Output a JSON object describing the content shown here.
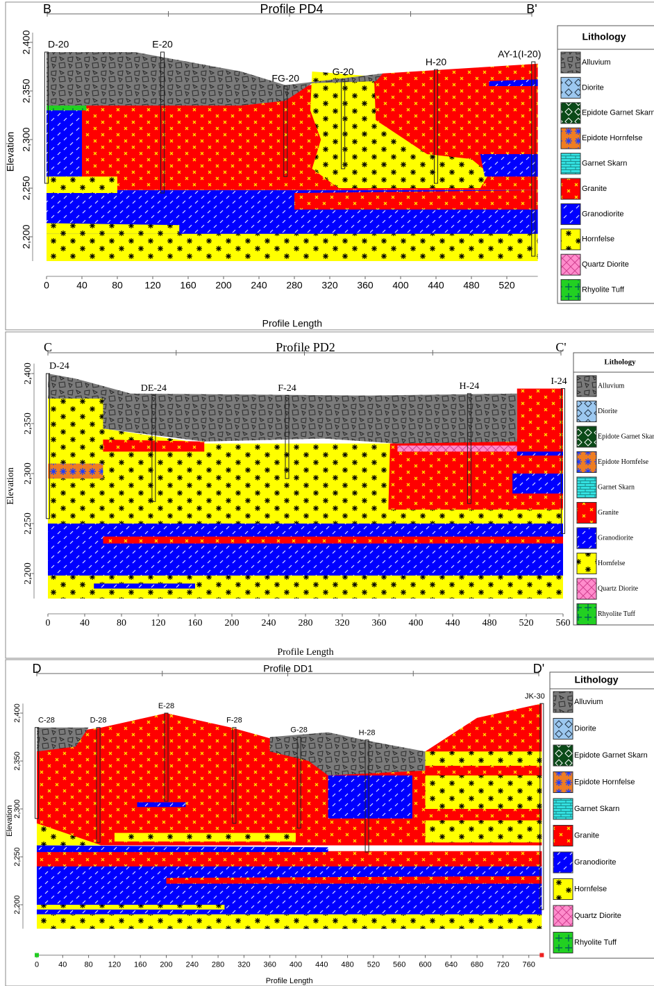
{
  "panels": [
    {
      "left_mark": "B",
      "right_mark": "B'",
      "title": "Profile PD4",
      "y_label": "Elevation",
      "x_label": "Profile Length",
      "yticks": [
        "2,400",
        "2,350",
        "2,300",
        "2,250",
        "2,200"
      ],
      "xticks": [
        "0",
        "40",
        "80",
        "120",
        "160",
        "200",
        "240",
        "280",
        "320",
        "360",
        "400",
        "440",
        "480",
        "520"
      ],
      "wells": [
        "D-20",
        "E-20",
        "FG-20",
        "G-20",
        "H-20",
        "AY-1(I-20)"
      ],
      "legend": {
        "title": "Lithology",
        "items": [
          "Alluvium",
          "Diorite",
          "Epidote Garnet Skarn",
          "Epidote Hornfelse",
          "Garnet Skarn",
          "Granite",
          "Granodiorite",
          "Hornfelse",
          "Quartz Diorite",
          "Rhyolite Tuff"
        ]
      }
    },
    {
      "left_mark": "C",
      "right_mark": "C'",
      "title": "Profile PD2",
      "y_label": "Elevation",
      "x_label": "Profile Length",
      "yticks": [
        "2,400",
        "2,350",
        "2,300",
        "2,250",
        "2,200"
      ],
      "xticks": [
        "0",
        "40",
        "80",
        "120",
        "160",
        "200",
        "240",
        "280",
        "320",
        "360",
        "400",
        "440",
        "480",
        "520",
        "560"
      ],
      "wells": [
        "D-24",
        "DE-24",
        "F-24",
        "H-24",
        "I-24"
      ],
      "legend": {
        "title": "Lithology",
        "items": [
          "Alluvium",
          "Diorite",
          "Epidote Garnet Skarn",
          "Epidote Hornfelse",
          "Garnet Skarn",
          "Granite",
          "Granodiorite",
          "Hornfelse",
          "Quartz Diorite",
          "Rhyolite Tuff"
        ]
      }
    },
    {
      "left_mark": "D",
      "right_mark": "D'",
      "title": "Profile DD1",
      "y_label": "Elevation",
      "x_label": "Profile Length",
      "yticks": [
        "2,400",
        "2,350",
        "2,300",
        "2,250",
        "2,200"
      ],
      "xticks": [
        "0",
        "40",
        "80",
        "120",
        "160",
        "200",
        "240",
        "280",
        "320",
        "360",
        "400",
        "440",
        "480",
        "520",
        "560",
        "600",
        "640",
        "680",
        "720",
        "760"
      ],
      "wells": [
        "C-28",
        "D-28",
        "E-28",
        "F-28",
        "G-28",
        "H-28",
        "JK-30"
      ],
      "legend": {
        "title": "Lithology",
        "items": [
          "Alluvium",
          "Diorite",
          "Epidote Garnet Skarn",
          "Epidote Hornfelse",
          "Garnet Skarn",
          "Granite",
          "Granodiorite",
          "Hornfelse",
          "Quartz Diorite",
          "Rhyolite Tuff"
        ]
      }
    }
  ]
}
